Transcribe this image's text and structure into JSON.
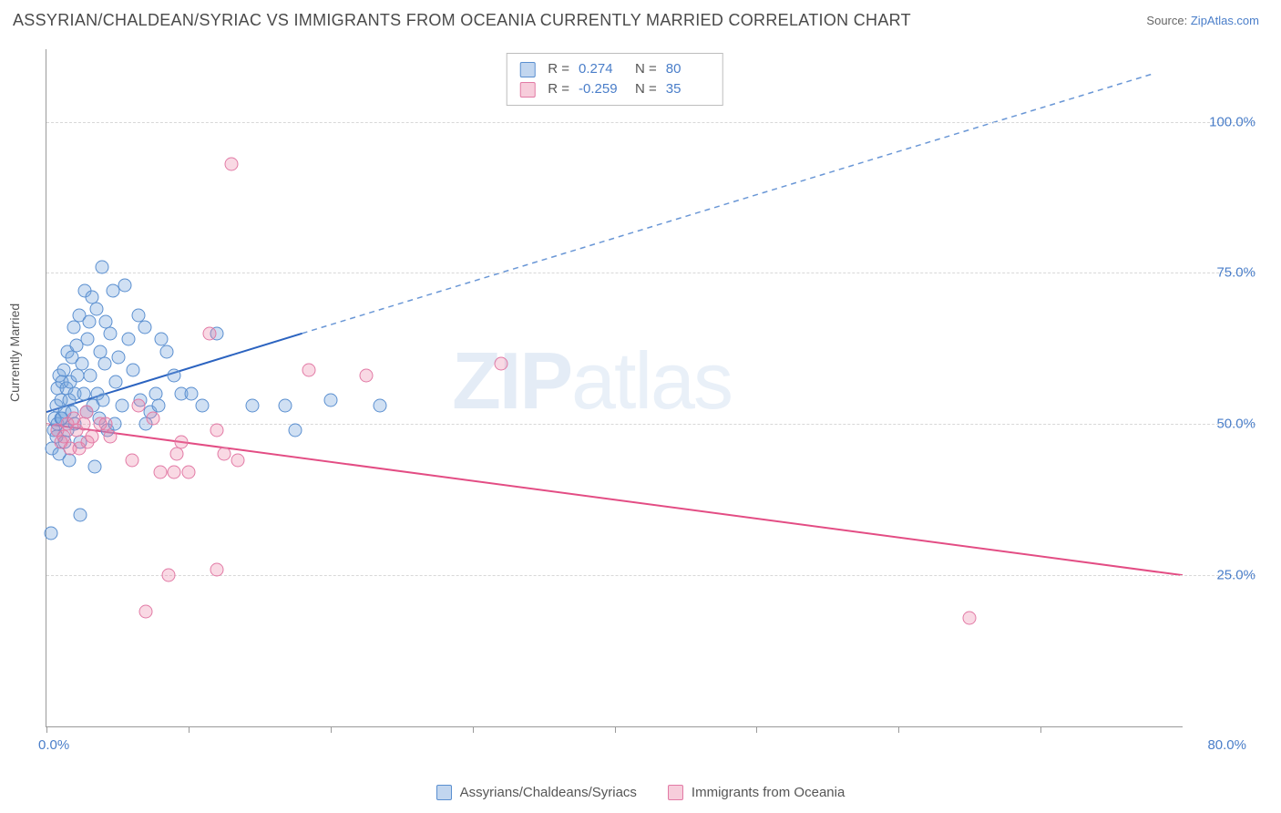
{
  "title": "ASSYRIAN/CHALDEAN/SYRIAC VS IMMIGRANTS FROM OCEANIA CURRENTLY MARRIED CORRELATION CHART",
  "source_label": "Source:",
  "source_name": "ZipAtlas.com",
  "y_axis_title": "Currently Married",
  "watermark": {
    "bold": "ZIP",
    "thin": "atlas"
  },
  "chart": {
    "type": "scatter",
    "xlim": [
      0,
      80
    ],
    "ylim": [
      0,
      112
    ],
    "gridlines_y": [
      25,
      50,
      75,
      100
    ],
    "y_tick_labels": [
      "25.0%",
      "50.0%",
      "75.0%",
      "100.0%"
    ],
    "x_tick_positions": [
      0,
      10,
      20,
      30,
      40,
      50,
      60,
      70
    ],
    "x_label_min": "0.0%",
    "x_label_max": "80.0%",
    "grid_color": "#d8d8d8",
    "axis_color": "#9a9a9a",
    "background_color": "#ffffff",
    "marker_size": 15
  },
  "series": {
    "blue": {
      "name": "Assyrians/Chaldeans/Syriacs",
      "fill_color": "rgba(120,165,220,0.35)",
      "border_color": "#5a8fd0",
      "trend_color_solid": "#2b63c0",
      "trend_color_dash": "#6a97d6",
      "R": "0.274",
      "N": "80",
      "trend": {
        "x0": 0,
        "y0": 52,
        "x_solid_end": 18,
        "y_solid_end": 65,
        "x_dash_end": 78,
        "y_dash_end": 108
      },
      "points": [
        [
          0.4,
          46
        ],
        [
          0.5,
          49
        ],
        [
          0.6,
          51
        ],
        [
          0.7,
          53
        ],
        [
          0.7,
          48
        ],
        [
          0.8,
          56
        ],
        [
          0.8,
          50
        ],
        [
          0.9,
          58
        ],
        [
          0.9,
          45
        ],
        [
          1.0,
          54
        ],
        [
          1.0,
          51
        ],
        [
          1.1,
          51
        ],
        [
          1.1,
          57
        ],
        [
          1.2,
          59
        ],
        [
          1.3,
          47
        ],
        [
          1.3,
          52
        ],
        [
          1.4,
          56
        ],
        [
          1.5,
          49
        ],
        [
          1.5,
          62
        ],
        [
          1.6,
          54
        ],
        [
          1.6,
          44
        ],
        [
          1.7,
          57
        ],
        [
          1.8,
          61
        ],
        [
          1.8,
          52
        ],
        [
          1.9,
          66
        ],
        [
          2.0,
          50
        ],
        [
          2.0,
          55
        ],
        [
          2.1,
          63
        ],
        [
          2.2,
          58
        ],
        [
          2.3,
          68
        ],
        [
          2.4,
          47
        ],
        [
          2.5,
          60
        ],
        [
          2.6,
          55
        ],
        [
          2.7,
          72
        ],
        [
          2.8,
          52
        ],
        [
          2.9,
          64
        ],
        [
          3.0,
          67
        ],
        [
          3.1,
          58
        ],
        [
          3.2,
          71
        ],
        [
          3.4,
          43
        ],
        [
          3.5,
          69
        ],
        [
          3.6,
          55
        ],
        [
          3.8,
          62
        ],
        [
          3.9,
          76
        ],
        [
          4.0,
          54
        ],
        [
          4.2,
          67
        ],
        [
          4.5,
          65
        ],
        [
          4.7,
          72
        ],
        [
          4.9,
          57
        ],
        [
          5.1,
          61
        ],
        [
          5.5,
          73
        ],
        [
          5.8,
          64
        ],
        [
          6.1,
          59
        ],
        [
          6.5,
          68
        ],
        [
          6.9,
          66
        ],
        [
          7.3,
          52
        ],
        [
          7.7,
          55
        ],
        [
          8.1,
          64
        ],
        [
          8.5,
          62
        ],
        [
          9.0,
          58
        ],
        [
          9.5,
          55
        ],
        [
          3.3,
          53
        ],
        [
          3.7,
          51
        ],
        [
          4.3,
          49
        ],
        [
          4.1,
          60
        ],
        [
          4.8,
          50
        ],
        [
          2.4,
          35
        ],
        [
          0.3,
          32
        ],
        [
          5.3,
          53
        ],
        [
          6.6,
          54
        ],
        [
          7.0,
          50
        ],
        [
          7.9,
          53
        ],
        [
          10.2,
          55
        ],
        [
          11.0,
          53
        ],
        [
          12.0,
          65
        ],
        [
          14.5,
          53
        ],
        [
          16.8,
          53
        ],
        [
          17.5,
          49
        ],
        [
          20.0,
          54
        ],
        [
          23.5,
          53
        ]
      ]
    },
    "pink": {
      "name": "Immigrants from Oceania",
      "fill_color": "rgba(235,130,165,0.30)",
      "border_color": "#e27aa5",
      "trend_color": "#e34d84",
      "R": "-0.259",
      "N": "35",
      "trend": {
        "x0": 0,
        "y0": 50,
        "x1": 80,
        "y1": 25
      },
      "points": [
        [
          0.8,
          49
        ],
        [
          1.0,
          47
        ],
        [
          1.2,
          48
        ],
        [
          1.5,
          50
        ],
        [
          1.7,
          46
        ],
        [
          1.9,
          51
        ],
        [
          2.1,
          49
        ],
        [
          2.3,
          46
        ],
        [
          2.6,
          50
        ],
        [
          2.8,
          52
        ],
        [
          3.2,
          48
        ],
        [
          2.9,
          47
        ],
        [
          3.8,
          50
        ],
        [
          4.5,
          48
        ],
        [
          4.2,
          50
        ],
        [
          6.5,
          53
        ],
        [
          6.0,
          44
        ],
        [
          8.0,
          42
        ],
        [
          7.5,
          51
        ],
        [
          9.2,
          45
        ],
        [
          9.0,
          42
        ],
        [
          9.5,
          47
        ],
        [
          10.0,
          42
        ],
        [
          12.5,
          45
        ],
        [
          13.5,
          44
        ],
        [
          13.0,
          93
        ],
        [
          11.5,
          65
        ],
        [
          12.0,
          49
        ],
        [
          18.5,
          59
        ],
        [
          22.5,
          58
        ],
        [
          8.6,
          25
        ],
        [
          12.0,
          26
        ],
        [
          7.0,
          19
        ],
        [
          32.0,
          60
        ],
        [
          65.0,
          18
        ]
      ]
    }
  },
  "legend": {
    "r_label": "R  = ",
    "n_label": "N  = "
  }
}
